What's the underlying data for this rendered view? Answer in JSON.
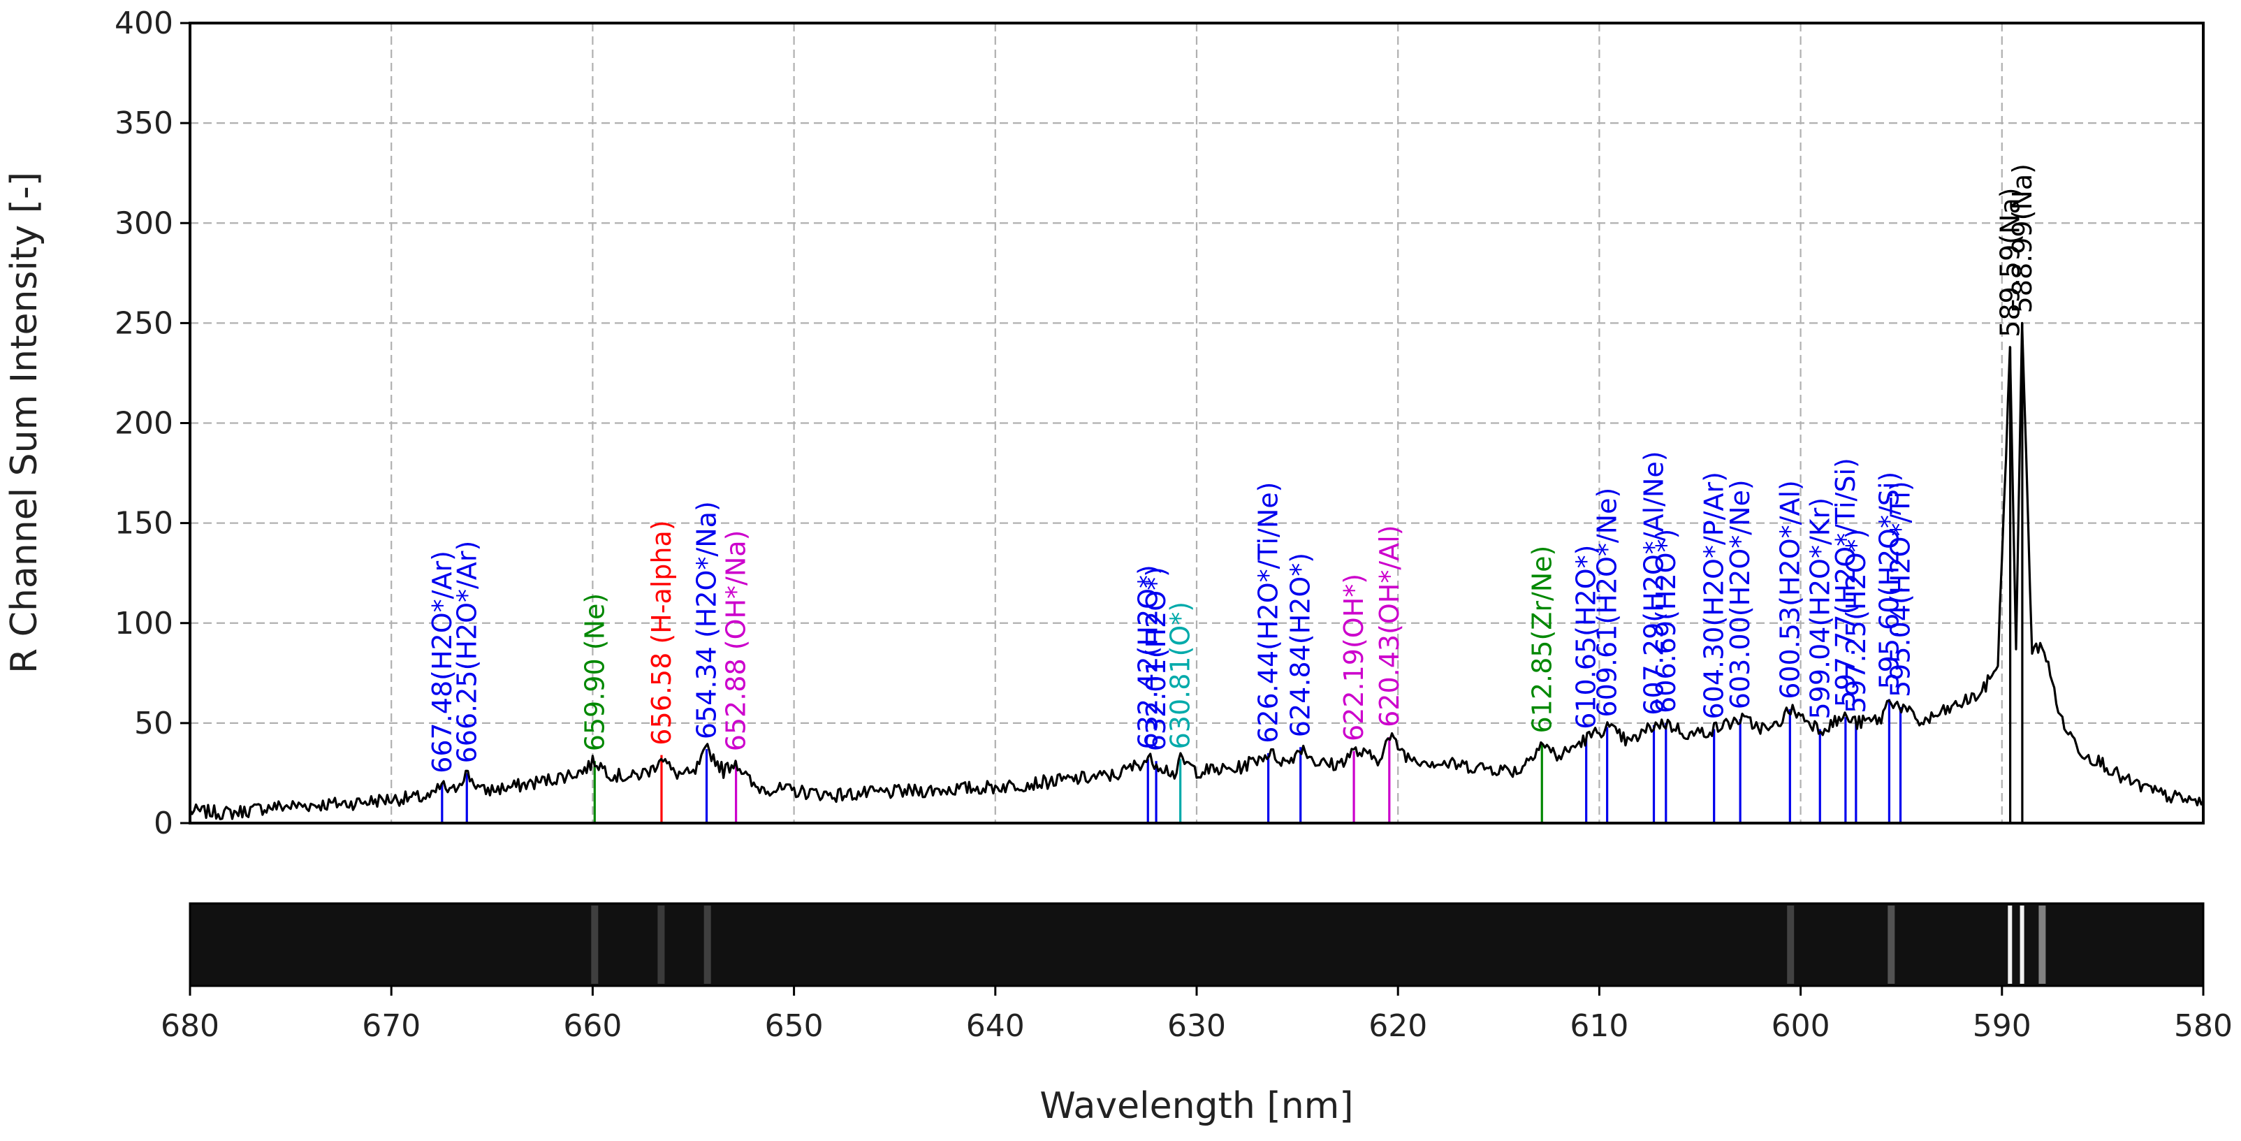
{
  "chart_data": {
    "type": "line",
    "title": "",
    "xlabel": "Wavelength [nm]",
    "ylabel": "R Channel Sum Intensity [-]",
    "xlim": [
      680,
      580
    ],
    "ylim": [
      0,
      400
    ],
    "x_ticks": [
      "680",
      "670",
      "660",
      "650",
      "640",
      "630",
      "620",
      "610",
      "600",
      "590",
      "580"
    ],
    "y_ticks": [
      "0",
      "50",
      "100",
      "150",
      "200",
      "250",
      "300",
      "350",
      "400"
    ],
    "grid": true,
    "colors": {
      "spectrum": "#000000",
      "h2o": "#0000ee",
      "oh": "#cc00cc",
      "ne": "#008800",
      "h_alpha": "#ff0000",
      "o": "#00aaaa",
      "na": "#000000"
    },
    "series": [
      {
        "name": "R channel sum spectrum",
        "x": [
          680,
          678,
          676,
          674,
          672,
          670,
          668,
          667.5,
          667,
          666.3,
          665.5,
          664,
          662,
          660.5,
          659.9,
          659,
          658,
          657,
          656.6,
          656,
          655,
          654.3,
          653.5,
          652.9,
          652,
          650,
          648,
          646,
          644,
          642,
          640,
          638,
          636,
          634,
          632.4,
          632,
          631,
          630.8,
          630,
          628,
          626.4,
          625.5,
          624.8,
          624,
          623,
          622.2,
          621,
          620.4,
          619.5,
          618,
          616,
          614,
          612.9,
          612,
          610.7,
          609.6,
          608.5,
          607.3,
          606.7,
          605.5,
          604.3,
          603,
          601.5,
          600.5,
          599,
          597.8,
          597.2,
          596,
          595.6,
          595,
          594,
          593,
          592,
          591,
          590.2,
          589.6,
          589.3,
          589,
          588.5,
          588,
          587,
          586,
          585,
          584,
          583,
          582,
          581,
          580
        ],
        "y": [
          6,
          5,
          8,
          9,
          10,
          12,
          13,
          19,
          15,
          25,
          16,
          18,
          22,
          26,
          31,
          24,
          23,
          27,
          34,
          25,
          24,
          37,
          26,
          31,
          18,
          16,
          14,
          15,
          16,
          17,
          18,
          20,
          22,
          24,
          32,
          30,
          24,
          32,
          26,
          27,
          35,
          30,
          38,
          30,
          29,
          36,
          32,
          43,
          33,
          30,
          28,
          26,
          40,
          33,
          42,
          48,
          40,
          49,
          50,
          44,
          47,
          52,
          46,
          57,
          47,
          53,
          50,
          52,
          62,
          58,
          50,
          55,
          60,
          65,
          80,
          238,
          85,
          250,
          85,
          90,
          50,
          35,
          30,
          22,
          18,
          14,
          12,
          10
        ]
      }
    ],
    "emission_lines": [
      {
        "wavelength": 667.48,
        "label": "667.48(H2O*/Ar)",
        "group": "h2o",
        "intensity": 20
      },
      {
        "wavelength": 666.25,
        "label": "666.25(H2O*/Ar)",
        "group": "h2o",
        "intensity": 25
      },
      {
        "wavelength": 659.9,
        "label": "659.90 (Ne)",
        "group": "ne",
        "intensity": 31
      },
      {
        "wavelength": 656.58,
        "label": "656.58 (H-alpha)",
        "group": "h_alpha",
        "intensity": 34
      },
      {
        "wavelength": 654.34,
        "label": "654.34 (H2O*/Na)",
        "group": "h2o",
        "intensity": 37
      },
      {
        "wavelength": 652.88,
        "label": "652.88 (OH*/Na)",
        "group": "oh",
        "intensity": 31
      },
      {
        "wavelength": 632.42,
        "label": "632.42(H2O*)",
        "group": "h2o",
        "intensity": 32
      },
      {
        "wavelength": 632.01,
        "label": "632.01(H2O*)",
        "group": "h2o",
        "intensity": 31
      },
      {
        "wavelength": 630.81,
        "label": "630.81(O*)",
        "group": "o",
        "intensity": 32
      },
      {
        "wavelength": 626.44,
        "label": "626.44(H2O*/Ti/Ne)",
        "group": "h2o",
        "intensity": 35
      },
      {
        "wavelength": 624.84,
        "label": "624.84(H2O*)",
        "group": "h2o",
        "intensity": 38
      },
      {
        "wavelength": 622.19,
        "label": "622.19(OH*)",
        "group": "oh",
        "intensity": 36
      },
      {
        "wavelength": 620.43,
        "label": "620.43(OH*/Al)",
        "group": "oh",
        "intensity": 43
      },
      {
        "wavelength": 612.85,
        "label": "612.85(Zr/Ne)",
        "group": "ne",
        "intensity": 40
      },
      {
        "wavelength": 610.65,
        "label": "610.65(H2O*)",
        "group": "h2o",
        "intensity": 42
      },
      {
        "wavelength": 609.61,
        "label": "609.61(H2O*/Ne)",
        "group": "h2o",
        "intensity": 48
      },
      {
        "wavelength": 607.29,
        "label": "607.29(H2O*/Al/Ne)",
        "group": "h2o",
        "intensity": 49
      },
      {
        "wavelength": 606.69,
        "label": "606.69(H2O*)",
        "group": "h2o",
        "intensity": 50
      },
      {
        "wavelength": 604.3,
        "label": "604.30(H2O*/P/Ar)",
        "group": "h2o",
        "intensity": 47
      },
      {
        "wavelength": 603.0,
        "label": "603.00(H2O*/Ne)",
        "group": "h2o",
        "intensity": 52
      },
      {
        "wavelength": 600.53,
        "label": "600.53(H2O*/Al)",
        "group": "h2o",
        "intensity": 57
      },
      {
        "wavelength": 599.04,
        "label": "599.04(H2O*/Kr)",
        "group": "h2o",
        "intensity": 47
      },
      {
        "wavelength": 597.77,
        "label": "597.77(H2O*/Ti/Si)",
        "group": "h2o",
        "intensity": 53
      },
      {
        "wavelength": 597.25,
        "label": "597.25(H2O*)",
        "group": "h2o",
        "intensity": 50
      },
      {
        "wavelength": 595.6,
        "label": "595.60(H2O*/Si)",
        "group": "h2o",
        "intensity": 62
      },
      {
        "wavelength": 595.04,
        "label": "595.04(H2O*/Ti)",
        "group": "h2o",
        "intensity": 58
      },
      {
        "wavelength": 589.59,
        "label": "589.59(Na)",
        "group": "na",
        "intensity": 238
      },
      {
        "wavelength": 588.99,
        "label": "588.99(Na)",
        "group": "na",
        "intensity": 250
      }
    ],
    "spectrum_image_bright_bands": [
      {
        "wavelength": 589.6,
        "brightness": 1.0
      },
      {
        "wavelength": 589.0,
        "brightness": 1.0
      },
      {
        "wavelength": 588.0,
        "brightness": 0.45
      },
      {
        "wavelength": 595.5,
        "brightness": 0.22
      },
      {
        "wavelength": 600.5,
        "brightness": 0.14
      },
      {
        "wavelength": 659.9,
        "brightness": 0.12
      },
      {
        "wavelength": 656.6,
        "brightness": 0.1
      },
      {
        "wavelength": 654.3,
        "brightness": 0.12
      }
    ]
  }
}
